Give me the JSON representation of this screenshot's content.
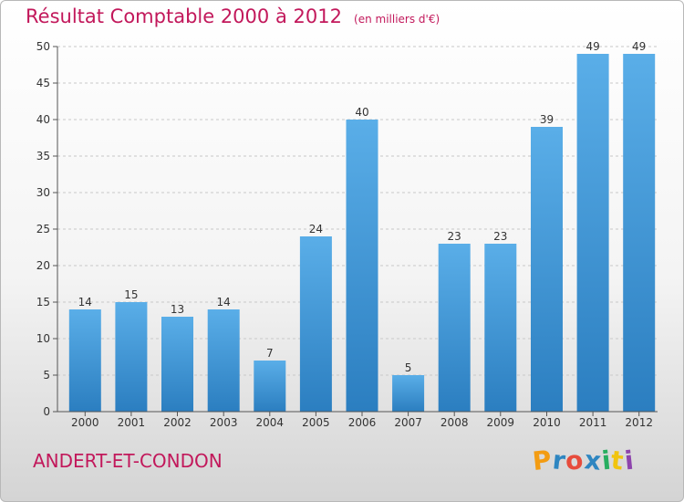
{
  "header": {
    "title": "Résultat Comptable 2000 à 2012",
    "subtitle": "(en milliers d'€)"
  },
  "footer": {
    "commune": "ANDERT-ET-CONDON",
    "logo_letters": [
      "P",
      "r",
      "o",
      "x",
      "i",
      "t",
      "i"
    ],
    "logo_colors": [
      "#f39c12",
      "#2e86c1",
      "#e74c3c",
      "#2e86c1",
      "#27ae60",
      "#f1c40f",
      "#8e44ad"
    ]
  },
  "colors": {
    "bar_light": "#5aaee8",
    "bar_dark": "#2b7ec0",
    "axis": "#555555",
    "grid": "#c8c8c8",
    "accent": "#c2185b"
  },
  "chart_data": {
    "type": "bar",
    "title": "Résultat Comptable 2000 à 2012",
    "subtitle": "(en milliers d'€)",
    "xlabel": "",
    "ylabel": "",
    "categories": [
      "2000",
      "2001",
      "2002",
      "2003",
      "2004",
      "2005",
      "2006",
      "2007",
      "2008",
      "2009",
      "2010",
      "2011",
      "2012"
    ],
    "values": [
      14,
      15,
      13,
      14,
      7,
      24,
      40,
      5,
      23,
      23,
      39,
      49,
      49
    ],
    "ylim": [
      0,
      50
    ],
    "yticks": [
      0,
      5,
      10,
      15,
      20,
      25,
      30,
      35,
      40,
      45,
      50
    ],
    "grid": true,
    "data_labels": true
  }
}
